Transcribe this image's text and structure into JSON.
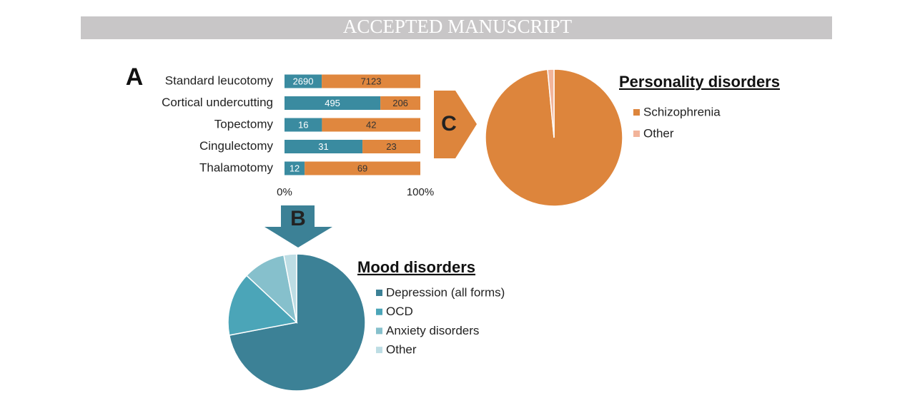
{
  "header": {
    "text": "ACCEPTED MANUSCRIPT"
  },
  "chart_data": [
    {
      "type": "bar",
      "orientation": "horizontal",
      "stacked": "percent",
      "panel": "A",
      "categories": [
        "Standard leucotomy",
        "Cortical undercutting",
        "Topectomy",
        "Cingulectomy",
        "Thalamotomy"
      ],
      "series": [
        {
          "color": "#3a8ba0",
          "values": [
            2690,
            495,
            16,
            31,
            12
          ]
        },
        {
          "color": "#e0873e",
          "values": [
            7123,
            206,
            42,
            23,
            69
          ]
        }
      ],
      "xlim": [
        0,
        100
      ],
      "xticks": [
        {
          "value": 0,
          "label": "0%"
        },
        {
          "value": 100,
          "label": "100%"
        }
      ]
    },
    {
      "type": "pie",
      "panel": "C",
      "title": "Personality disorders",
      "categories": [
        "Schizophrenia",
        "Other"
      ],
      "values": [
        98.5,
        1.5
      ],
      "colors": [
        "#dd853c",
        "#f2b49a"
      ]
    },
    {
      "type": "pie",
      "panel": "B",
      "title": "Mood disorders",
      "categories": [
        "Depression (all forms)",
        "OCD",
        "Anxiety disorders",
        "Other"
      ],
      "values": [
        72,
        15,
        10,
        3
      ],
      "colors": [
        "#3c8196",
        "#4ba5b8",
        "#86c0cc",
        "#bddde4"
      ]
    }
  ]
}
